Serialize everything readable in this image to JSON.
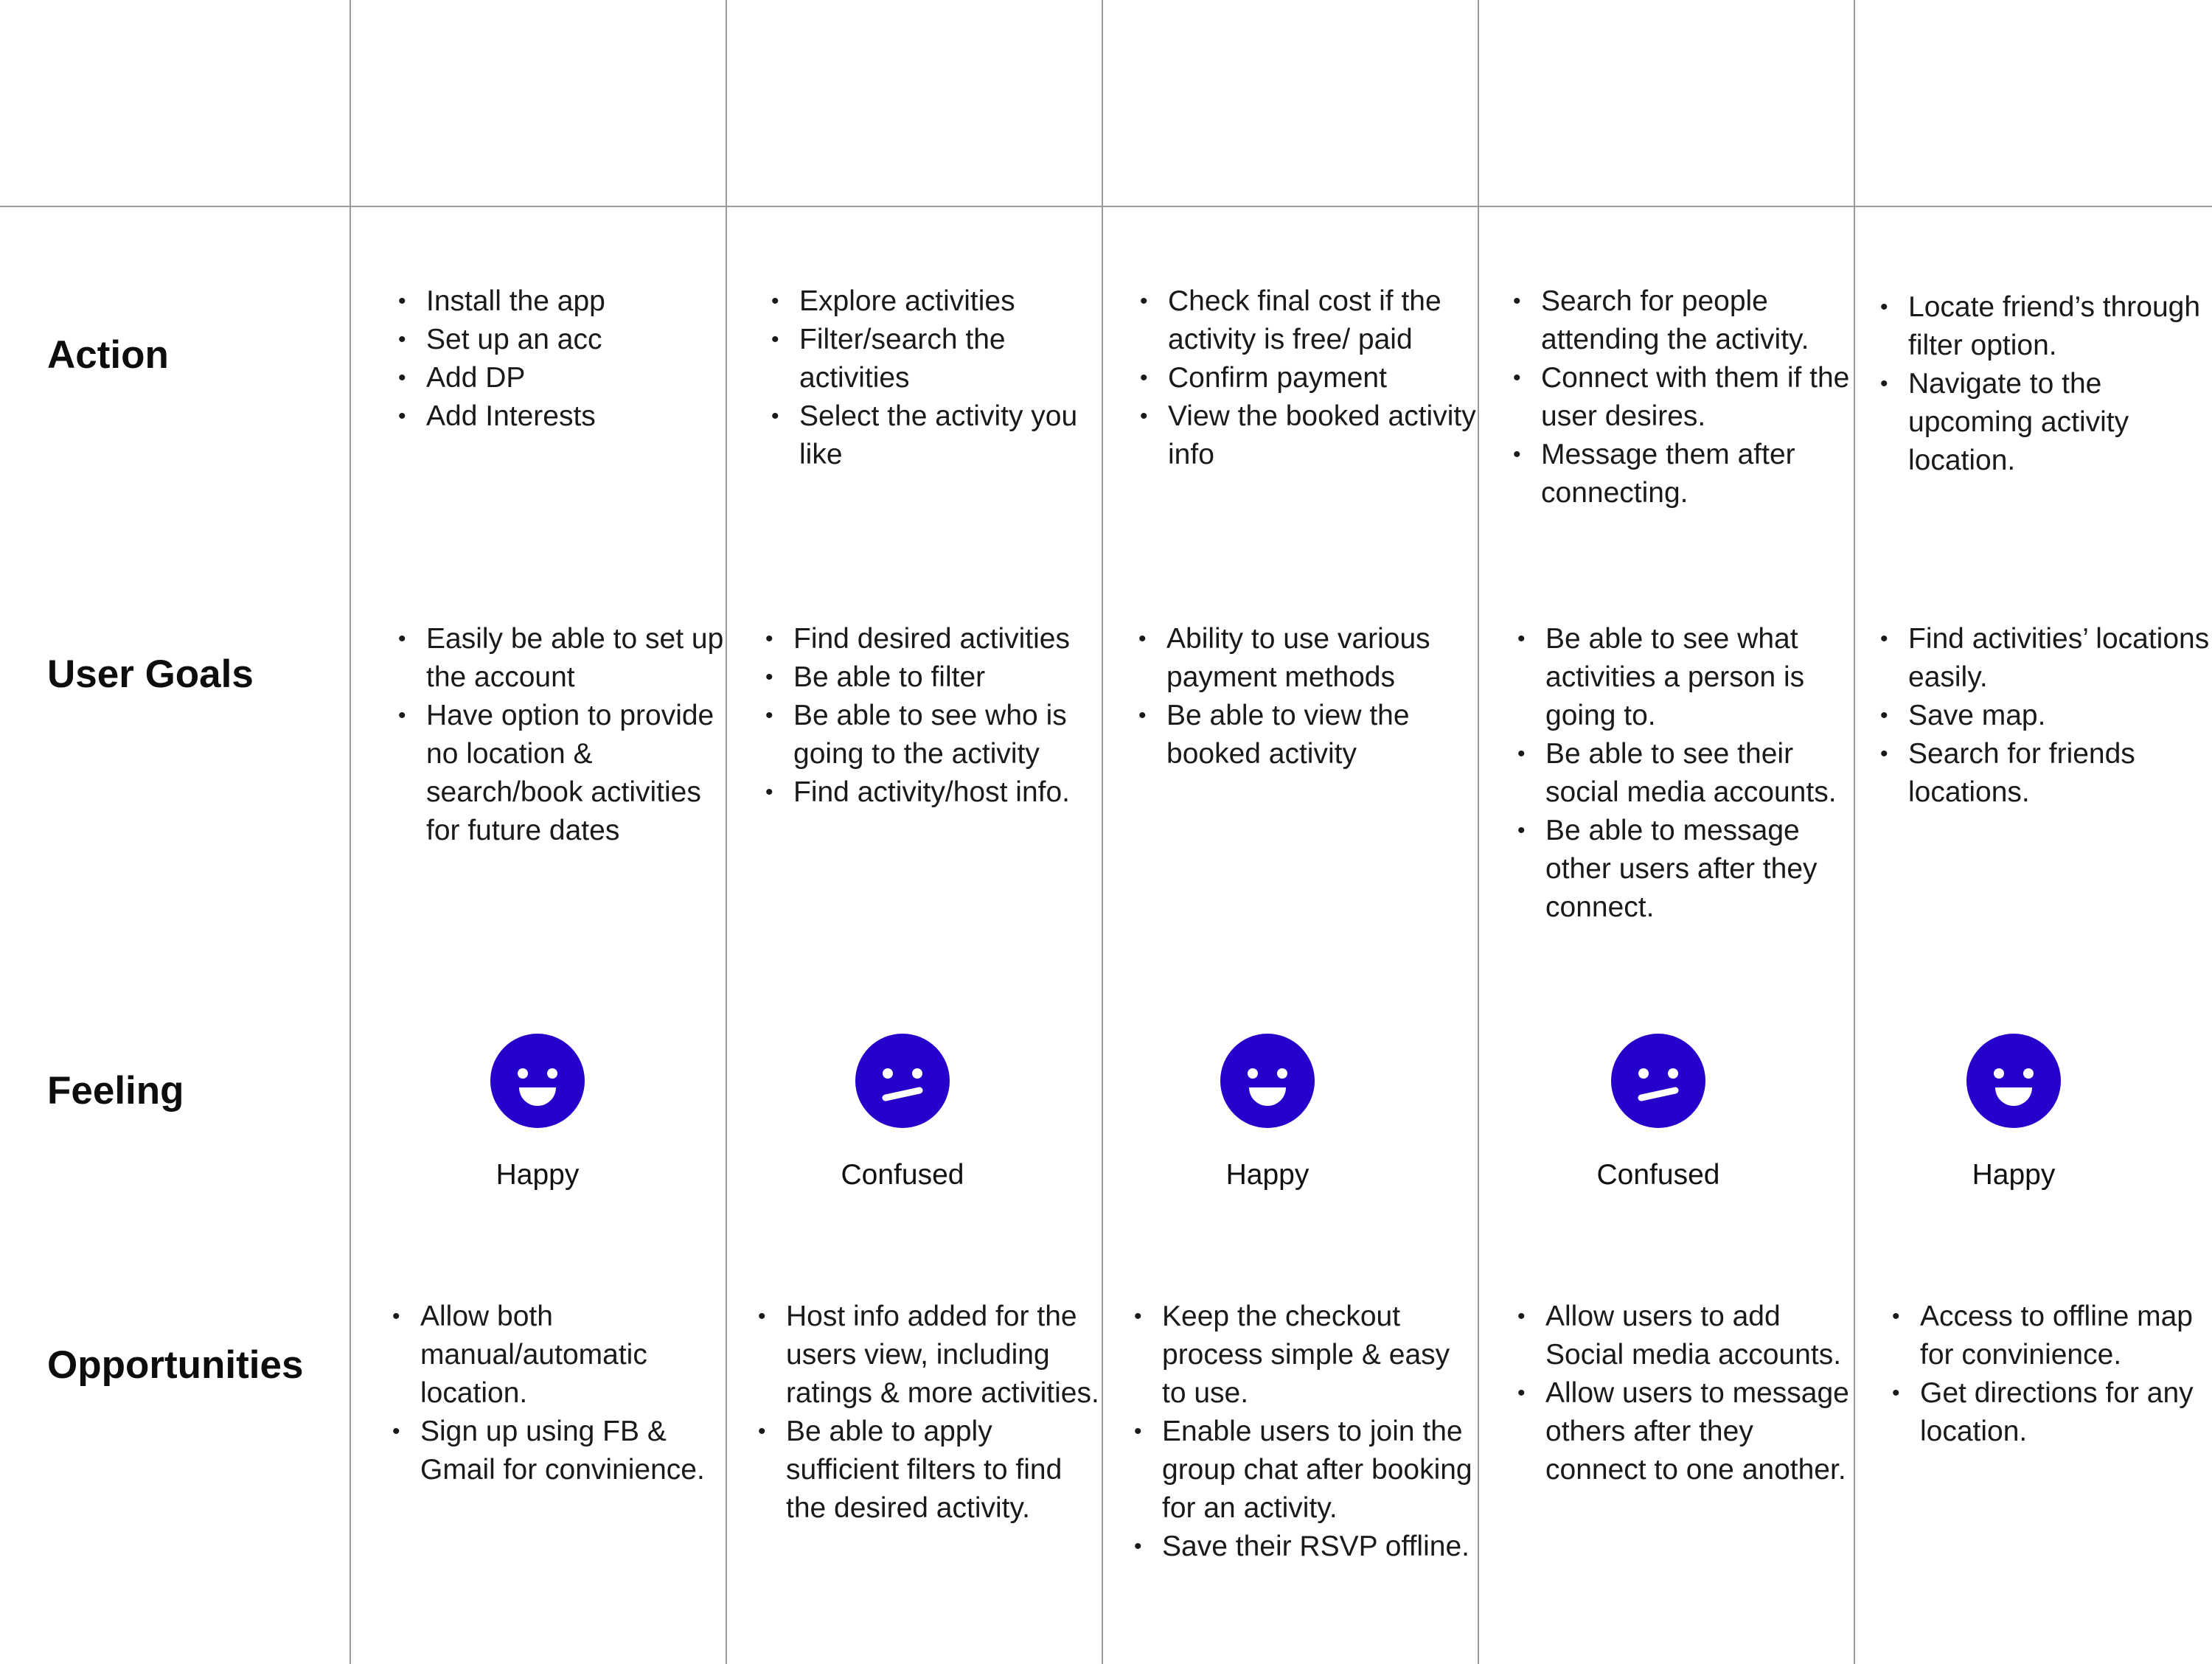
{
  "accent_color": "#2800CC",
  "rows": {
    "action": "Action",
    "goals": "User Goals",
    "feeling": "Feeling",
    "opportunities": "Opportunities"
  },
  "stages": [
    {
      "action": [
        "Install the app",
        "Set up an acc",
        "Add DP",
        "Add Interests"
      ],
      "goals": [
        "Easily be able to set up the account",
        "Have option to provide no location & search/book activities for future dates"
      ],
      "feeling": {
        "label": "Happy",
        "icon": "happy-face-icon"
      },
      "opportunities": [
        "Allow both manual/automatic location.",
        "Sign up using FB & Gmail for convinience."
      ]
    },
    {
      "action": [
        "Explore activities",
        "Filter/search the activities",
        "Select the activity you like"
      ],
      "goals": [
        "Find desired activities",
        "Be able to filter",
        "Be able to see who is going to the activity",
        "Find activity/host info."
      ],
      "feeling": {
        "label": "Confused",
        "icon": "confused-face-icon"
      },
      "opportunities": [
        "Host info added for the users view, including ratings & more activities.",
        "Be able to apply sufficient filters to find the desired activity."
      ]
    },
    {
      "action": [
        "Check final cost if the activity is free/ paid",
        "Confirm payment",
        "View the booked activity info"
      ],
      "goals": [
        "Ability to use various payment methods",
        "Be able to view the booked activity"
      ],
      "feeling": {
        "label": "Happy",
        "icon": "happy-face-icon"
      },
      "opportunities": [
        "Keep the checkout process simple & easy to use.",
        "Enable users to join the group chat after booking for an activity.",
        "Save their RSVP offline."
      ]
    },
    {
      "action": [
        "Search for people attending the activity.",
        "Connect with them if the user desires.",
        "Message them after connecting."
      ],
      "goals": [
        "Be able to see what activities a person is going to.",
        "Be able to see their social media accounts.",
        "Be able to message other users after they connect."
      ],
      "feeling": {
        "label": "Confused",
        "icon": "confused-face-icon"
      },
      "opportunities": [
        "Allow users to add Social media accounts.",
        "Allow users to message others after they connect to one another."
      ]
    },
    {
      "action": [
        "Locate friend’s through filter option.",
        "Navigate to the upcoming activity location."
      ],
      "goals": [
        "Find activities’ locations easily.",
        "Save map.",
        "Search for friends locations."
      ],
      "feeling": {
        "label": "Happy",
        "icon": "happy-face-icon"
      },
      "opportunities": [
        "Access to offline map for convinience.",
        "Get directions for any location."
      ]
    }
  ]
}
